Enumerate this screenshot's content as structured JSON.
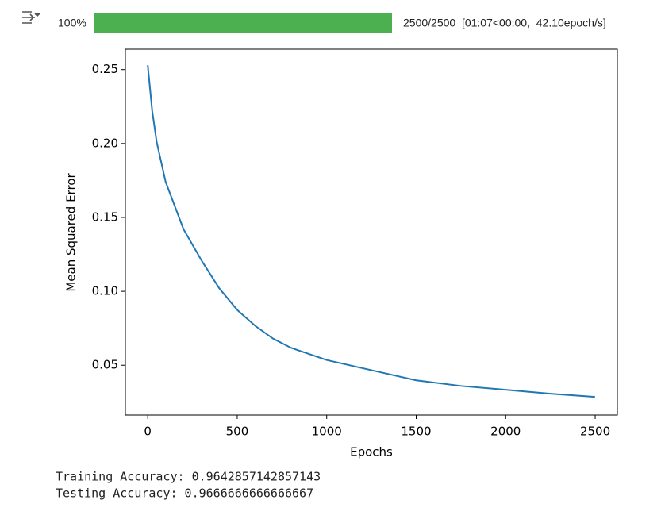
{
  "progress": {
    "percent": "100%",
    "status": "2500/2500  [01:07<00:00,  42.10epoch/s]"
  },
  "chart_data": {
    "type": "line",
    "x_label": "Epochs",
    "y_label": "Mean Squared Error",
    "x": [
      0,
      25,
      50,
      100,
      200,
      300,
      400,
      500,
      600,
      700,
      800,
      1000,
      1200,
      1500,
      1750,
      2000,
      2250,
      2499
    ],
    "series": [
      {
        "name": "mse",
        "color": "#1f77b4",
        "values": [
          0.253,
          0.222,
          0.201,
          0.174,
          0.142,
          0.121,
          0.102,
          0.0874,
          0.0767,
          0.068,
          0.0618,
          0.0535,
          0.048,
          0.0398,
          0.036,
          0.0334,
          0.0307,
          0.0286
        ]
      }
    ],
    "xlim": [
      -124.95,
      2623.95
    ],
    "ylim": [
      0.0163,
      0.2638
    ],
    "xticks": [
      0,
      500,
      1000,
      1500,
      2000,
      2500
    ],
    "yticks": [
      0.05,
      {
        "value": 0.1,
        "label": "0.10"
      },
      0.15,
      {
        "value": 0.2,
        "label": "0.20"
      },
      0.25
    ]
  },
  "output": [
    "Training Accuracy: 0.9642857142857143",
    "Testing Accuracy: 0.9666666666666667"
  ]
}
